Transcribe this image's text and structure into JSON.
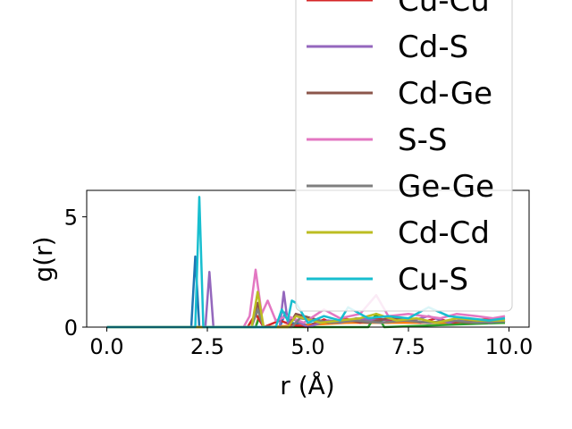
{
  "chart_data": {
    "type": "line",
    "title": "",
    "xlabel": "r (Å)",
    "ylabel": "g(r)",
    "xlim": [
      -0.5,
      10.5
    ],
    "ylim": [
      0,
      6.2
    ],
    "xticks": [
      0.0,
      2.5,
      5.0,
      7.5,
      10.0
    ],
    "xtick_labels": [
      "0.0",
      "2.5",
      "5.0",
      "7.5",
      "10.0"
    ],
    "yticks": [
      0,
      5
    ],
    "ytick_labels": [
      "0",
      "5"
    ],
    "legend_position": "upper-right (extends above axes)",
    "series": [
      {
        "name": "Cu-Cu",
        "color": "#d62728",
        "x": [
          0,
          3.5,
          3.7,
          3.9,
          4.3,
          4.6,
          5.0,
          5.4,
          5.6,
          5.9,
          6.3,
          6.7,
          7.0,
          7.4,
          7.8,
          8.2,
          8.6,
          9.0,
          9.4,
          9.9
        ],
        "y": [
          0,
          0,
          0.6,
          0,
          0.3,
          0.1,
          0,
          0.35,
          0.2,
          0.4,
          0.2,
          0.4,
          0.3,
          0.4,
          0.2,
          0.4,
          0.2,
          0.3,
          0.35,
          0.3
        ]
      },
      {
        "name": "Cd-S",
        "color": "#9467bd",
        "x": [
          0,
          2.45,
          2.55,
          2.65,
          2.75,
          4.3,
          4.4,
          4.5,
          4.6,
          5.0,
          5.5,
          5.8,
          6.2,
          6.7,
          7.2,
          7.6,
          8.0,
          8.5,
          9.0,
          9.5,
          9.9
        ],
        "y": [
          0,
          0,
          2.5,
          0,
          0,
          0,
          1.6,
          0.2,
          0.4,
          0,
          0.3,
          0.2,
          0.4,
          0.3,
          0.4,
          0.3,
          0.5,
          0.2,
          0.4,
          0.2,
          0.3
        ]
      },
      {
        "name": "Cd-Ge",
        "color": "#8c564b",
        "x": [
          0,
          3.6,
          3.75,
          3.9,
          4.5,
          4.7,
          5.5,
          6.0,
          6.5,
          7.0,
          7.5,
          8.0,
          8.5,
          9.0,
          9.9
        ],
        "y": [
          0,
          0,
          1.1,
          0,
          0,
          0.6,
          0.2,
          0.3,
          0.2,
          0.4,
          0.3,
          0.2,
          0.3,
          0.2,
          0.3
        ]
      },
      {
        "name": "S-S",
        "color": "#e377c2",
        "x": [
          0,
          3.4,
          3.55,
          3.7,
          3.85,
          4.0,
          4.2,
          4.5,
          4.9,
          5.4,
          5.8,
          6.3,
          6.7,
          7.0,
          7.5,
          7.9,
          8.3,
          8.7,
          9.2,
          9.6,
          9.9
        ],
        "y": [
          0,
          0,
          0.5,
          2.6,
          0.6,
          1.2,
          0.3,
          0.5,
          0.2,
          0.8,
          0.4,
          0.6,
          1.45,
          0.5,
          0.6,
          0.5,
          0.4,
          0.6,
          0.5,
          0.4,
          0.5
        ]
      },
      {
        "name": "Ge-Ge",
        "color": "#7f7f7f",
        "x": [
          0,
          3.6,
          3.75,
          3.9,
          4.6,
          4.8,
          5.6,
          6.2,
          6.8,
          7.4,
          8.0,
          8.6,
          9.2,
          9.9
        ],
        "y": [
          0,
          0,
          0.8,
          0,
          0,
          0.4,
          0.2,
          0.3,
          0.2,
          0.3,
          0.2,
          0.3,
          0.2,
          0.25
        ]
      },
      {
        "name": "Cd-Cd",
        "color": "#bcbd22",
        "x": [
          0,
          3.6,
          3.75,
          3.9,
          4.5,
          4.7,
          5.3,
          5.8,
          6.3,
          6.7,
          7.2,
          7.7,
          8.2,
          8.7,
          9.2,
          9.9
        ],
        "y": [
          0,
          0,
          1.6,
          0,
          0,
          0.5,
          0.2,
          0.3,
          0.4,
          0.6,
          0.3,
          0.4,
          0.2,
          0.4,
          0.3,
          0.3
        ]
      },
      {
        "name": "Cu-S",
        "color": "#17becf",
        "x": [
          0,
          2.2,
          2.3,
          2.4,
          4.2,
          4.35,
          4.5,
          4.6,
          4.7,
          5.0,
          5.4,
          5.8,
          6.0,
          6.5,
          7.0,
          7.5,
          8.0,
          8.5,
          9.0,
          9.5,
          9.9
        ],
        "y": [
          0,
          0,
          5.9,
          0,
          0,
          0.8,
          0.3,
          1.2,
          1.1,
          0.2,
          0.5,
          0.3,
          0.9,
          0.4,
          0.5,
          0.4,
          0.9,
          0.5,
          0.4,
          0.3,
          0.4
        ]
      }
    ],
    "extra_lines": [
      {
        "color": "#1f77b4",
        "x": [
          0,
          2.1,
          2.2,
          2.3,
          4.3,
          4.45,
          4.55,
          5.0,
          5.5,
          6.0,
          6.5,
          7.0,
          7.5,
          8.0,
          8.5,
          9.0,
          9.5,
          9.9
        ],
        "y": [
          0,
          0,
          3.2,
          0,
          0,
          0.7,
          0.2,
          0.1,
          0.3,
          0.2,
          0.3,
          0.2,
          0.3,
          0.2,
          0.3,
          0.2,
          0.3,
          0.2
        ]
      },
      {
        "color": "#ff7f0e",
        "x": [
          0,
          3.7,
          3.8,
          3.9,
          5.0,
          6.0,
          7.0,
          8.0,
          9.0,
          9.9
        ],
        "y": [
          0,
          0,
          0.6,
          0,
          0.1,
          0.2,
          0.2,
          0.2,
          0.2,
          0.2
        ]
      },
      {
        "color": "#2ca02c",
        "x": [
          0,
          3.7,
          3.8,
          3.9,
          6.5,
          6.7,
          6.9,
          9.9
        ],
        "y": [
          0,
          0,
          0.5,
          0,
          0,
          0.6,
          0,
          0.2
        ]
      }
    ]
  }
}
